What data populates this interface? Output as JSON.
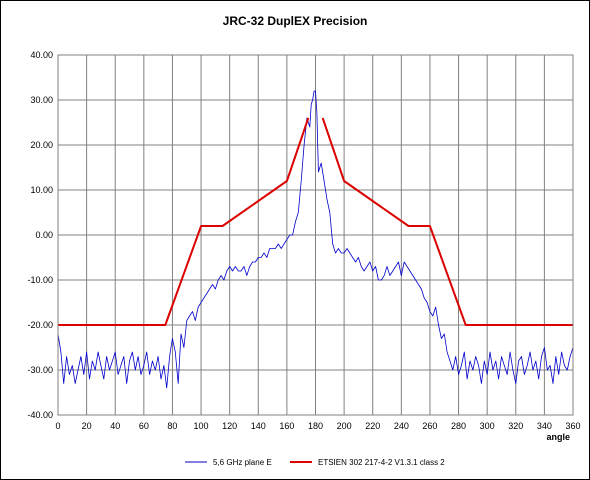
{
  "chart_data": {
    "type": "line",
    "title": "JRC-32 DuplEX Precision",
    "xlabel": "angle",
    "ylabel": "",
    "xlim": [
      0,
      360
    ],
    "ylim": [
      -40,
      40
    ],
    "x_ticks": [
      0,
      20,
      40,
      60,
      80,
      100,
      120,
      140,
      160,
      180,
      200,
      220,
      240,
      260,
      280,
      300,
      320,
      340,
      360
    ],
    "x_tick_labels": [
      "0",
      "20",
      "40",
      "60",
      "80",
      "100",
      "120",
      "140",
      "160",
      "180",
      "200",
      "220",
      "240",
      "260",
      "280",
      "300",
      "320",
      "340",
      "360"
    ],
    "y_ticks": [
      40,
      30,
      20,
      10,
      0,
      -10,
      -20,
      -30,
      -40
    ],
    "y_tick_labels": [
      "40.00",
      "30.00",
      "20.00",
      "10.00",
      "0.00",
      "-10.00",
      "-20.00",
      "-30.00",
      "-40.00"
    ],
    "grid": true,
    "legend_position": "bottom",
    "series": [
      {
        "name": "5,6 GHz plane E",
        "color": "#0000cc",
        "x": [
          0,
          2,
          4,
          6,
          8,
          10,
          12,
          14,
          16,
          18,
          20,
          22,
          24,
          26,
          28,
          30,
          32,
          34,
          36,
          38,
          40,
          42,
          44,
          46,
          48,
          50,
          52,
          54,
          56,
          58,
          60,
          62,
          64,
          66,
          68,
          70,
          72,
          74,
          76,
          78,
          80,
          82,
          84,
          86,
          88,
          90,
          92,
          94,
          96,
          98,
          100,
          102,
          104,
          106,
          108,
          110,
          112,
          114,
          116,
          118,
          120,
          122,
          124,
          126,
          128,
          130,
          132,
          134,
          136,
          138,
          140,
          142,
          144,
          146,
          148,
          150,
          152,
          154,
          156,
          158,
          160,
          162,
          164,
          166,
          168,
          170,
          172,
          174,
          176,
          177,
          178,
          179,
          180,
          181,
          182,
          184,
          186,
          188,
          190,
          192,
          194,
          196,
          198,
          200,
          202,
          204,
          206,
          208,
          210,
          212,
          214,
          216,
          218,
          220,
          222,
          224,
          226,
          228,
          230,
          232,
          234,
          236,
          238,
          240,
          242,
          244,
          246,
          248,
          250,
          252,
          254,
          256,
          258,
          260,
          262,
          264,
          266,
          268,
          270,
          272,
          274,
          276,
          278,
          280,
          282,
          284,
          286,
          288,
          290,
          292,
          294,
          296,
          298,
          300,
          302,
          304,
          306,
          308,
          310,
          312,
          314,
          316,
          318,
          320,
          322,
          324,
          326,
          328,
          330,
          332,
          334,
          336,
          338,
          340,
          342,
          344,
          346,
          348,
          350,
          352,
          354,
          356,
          358,
          360
        ],
        "y": [
          -22,
          -26,
          -33,
          -27,
          -31,
          -29,
          -33,
          -30,
          -27,
          -31,
          -26,
          -32,
          -28,
          -30,
          -26,
          -29,
          -32,
          -27,
          -30,
          -28,
          -26,
          -31,
          -29,
          -27,
          -33,
          -28,
          -26,
          -30,
          -27,
          -31,
          -29,
          -26,
          -31,
          -28,
          -30,
          -27,
          -32,
          -29,
          -34,
          -27,
          -23,
          -26,
          -33,
          -22,
          -25,
          -19,
          -18,
          -17,
          -19,
          -16,
          -15,
          -14,
          -13,
          -12,
          -11,
          -12,
          -10,
          -9,
          -10,
          -8,
          -7,
          -8,
          -7,
          -8,
          -8,
          -7,
          -9,
          -7,
          -6,
          -6,
          -5,
          -5,
          -4,
          -5,
          -3,
          -3,
          -3,
          -2,
          -3,
          -2,
          -1,
          0,
          0,
          3,
          5,
          12,
          20,
          26,
          24,
          29,
          30,
          32,
          32,
          27,
          14,
          16,
          12,
          8,
          5,
          -2,
          -4,
          -3,
          -4,
          -4,
          -3,
          -4,
          -5,
          -6,
          -5,
          -7,
          -8,
          -7,
          -6,
          -8,
          -7,
          -10,
          -10,
          -9,
          -7,
          -9,
          -8,
          -7,
          -6,
          -9,
          -6,
          -7,
          -8,
          -9,
          -10,
          -11,
          -12,
          -14,
          -15,
          -17,
          -18,
          -16,
          -20,
          -23,
          -22,
          -26,
          -28,
          -30,
          -27,
          -31,
          -29,
          -26,
          -32,
          -28,
          -30,
          -27,
          -29,
          -33,
          -28,
          -31,
          -26,
          -30,
          -28,
          -32,
          -27,
          -29,
          -31,
          -26,
          -30,
          -33,
          -28,
          -27,
          -31,
          -29,
          -26,
          -30,
          -28,
          -32,
          -27,
          -25,
          -30,
          -29,
          -33,
          -27,
          -31,
          -26,
          -29,
          -30,
          -27,
          -25
        ]
      },
      {
        "name": "ETSIEN 302 217-4-2 V1.3.1 class 2",
        "color": "#dd0000",
        "x": [
          0,
          75,
          100,
          115,
          160,
          175
        ],
        "y": [
          -20,
          -20,
          2,
          2,
          12,
          26
        ],
        "x2": [
          185,
          200,
          245,
          260,
          285,
          360
        ],
        "y2": [
          26,
          12,
          2,
          2,
          -20,
          -20
        ]
      }
    ]
  }
}
